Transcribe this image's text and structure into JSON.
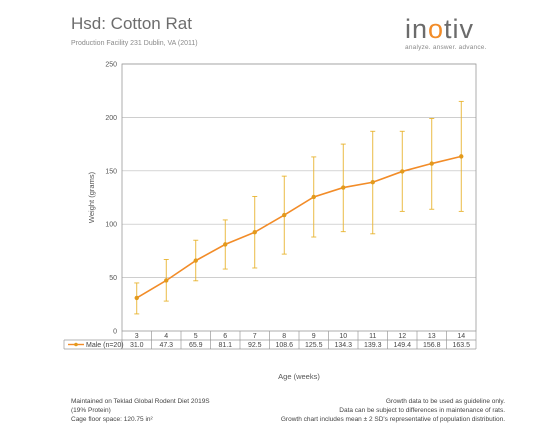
{
  "header": {
    "title": "Hsd: Cotton Rat",
    "subtitle": "Production Facility 231 Dublin, VA (2011)"
  },
  "logo": {
    "word_pre": "in",
    "word_o": "o",
    "word_post": "tiv",
    "tagline": "analyze. answer. advance."
  },
  "chart_data": {
    "type": "line",
    "categories": [
      "3",
      "4",
      "5",
      "6",
      "7",
      "8",
      "9",
      "10",
      "11",
      "12",
      "13",
      "14"
    ],
    "series": [
      {
        "name": "Male (n=20)",
        "values": [
          31.0,
          47.3,
          65.9,
          81.1,
          92.5,
          108.6,
          125.5,
          134.3,
          139.3,
          149.4,
          156.8,
          163.5
        ],
        "error_high": [
          45,
          67,
          85,
          104,
          126,
          145,
          163,
          175,
          187,
          187,
          199,
          215
        ],
        "error_low": [
          16,
          28,
          47,
          58,
          59,
          72,
          88,
          93,
          91,
          112,
          114,
          112
        ],
        "value_labels": [
          "31.0",
          "47.3",
          "65.9",
          "81.1",
          "92.5",
          "108.6",
          "125.5",
          "134.3",
          "139.3",
          "149.4",
          "156.8",
          "163.5"
        ]
      }
    ],
    "xlabel": "Age (weeks)",
    "ylabel": "Weight (grams)",
    "ylim": [
      0,
      250
    ],
    "yticks": [
      "0",
      "50",
      "100",
      "150",
      "200",
      "250"
    ],
    "grid": true,
    "legend": "data-table",
    "colors": {
      "line": "#f28c28",
      "marker": "#e39a1c",
      "errorbar": "#e8b430",
      "grid": "#bdbdbd"
    }
  },
  "footer": {
    "left": [
      "Maintained on Teklad Global Rodent Diet 2019S",
      "(19% Protein)",
      "Cage floor space: 120.75 in²"
    ],
    "right": [
      "Growth data to be used as guideline only.",
      "Data can be subject to differences in maintenance of rats.",
      "Growth chart includes mean ± 2 SD's representative of population distribution."
    ]
  }
}
